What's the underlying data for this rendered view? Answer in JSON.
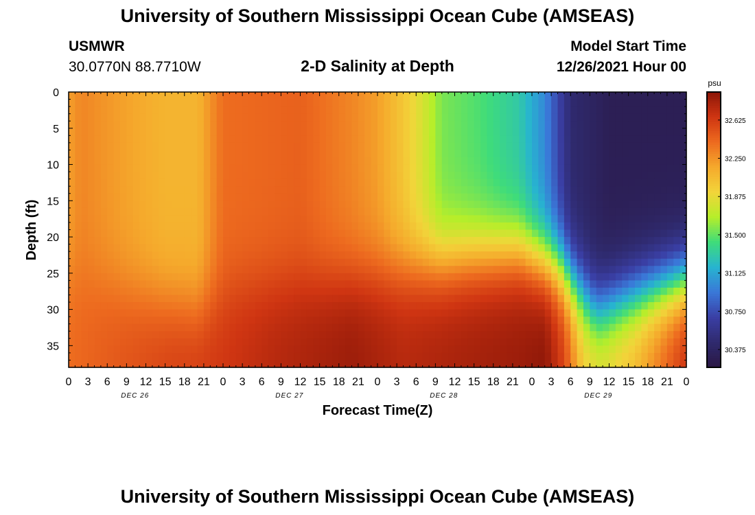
{
  "header": {
    "title": "University of Southern Mississippi Ocean Cube (AMSEAS)",
    "station_id": "USMWR",
    "station_coords": "30.0770N  88.7710W",
    "plot_title": "2-D Salinity at Depth",
    "model_start_label": "Model Start Time",
    "model_start_time": "12/26/2021 Hour 00"
  },
  "footer": {
    "title": "University of Southern Mississippi Ocean Cube (AMSEAS)"
  },
  "colors": {
    "colormap": [
      "#2a1744",
      "#2f2a6e",
      "#3a3fa5",
      "#3a78d8",
      "#27b4d0",
      "#3fdc7a",
      "#b6ee2a",
      "#f2d53a",
      "#f5a92c",
      "#ed6a1f",
      "#cf3512",
      "#8c1608"
    ]
  },
  "chart_data": {
    "type": "heatmap",
    "title": "2-D Salinity at Depth",
    "xlabel": "Forecast Time(Z)",
    "ylabel": "Depth (ft)",
    "x_tick_labels": [
      "0",
      "3",
      "6",
      "9",
      "12",
      "15",
      "18",
      "21",
      "0",
      "3",
      "6",
      "9",
      "12",
      "15",
      "18",
      "21",
      "0",
      "3",
      "6",
      "9",
      "12",
      "15",
      "18",
      "21",
      "0",
      "3",
      "6",
      "9",
      "12",
      "15",
      "18",
      "21",
      "0"
    ],
    "x_hours_range": [
      0,
      96
    ],
    "day_labels": [
      {
        "label": "DEC 26",
        "hour": 10
      },
      {
        "label": "DEC 27",
        "hour": 34
      },
      {
        "label": "DEC 28",
        "hour": 58
      },
      {
        "label": "DEC 29",
        "hour": 82
      }
    ],
    "y_ticks": [
      0,
      5,
      10,
      15,
      20,
      25,
      30,
      35
    ],
    "ylim": [
      0,
      38
    ],
    "colorbar": {
      "unit": "psu",
      "min": 30.2,
      "max": 32.9,
      "tick_labels": [
        "32.625",
        "32.250",
        "31.875",
        "31.500",
        "31.125",
        "30.750",
        "30.375"
      ],
      "tick_values": [
        32.625,
        32.25,
        31.875,
        31.5,
        31.125,
        30.75,
        30.375
      ]
    },
    "surface_profile": [
      {
        "hour": 0,
        "psu": 32.2
      },
      {
        "hour": 2,
        "psu": 32.3
      },
      {
        "hour": 8,
        "psu": 32.2
      },
      {
        "hour": 15,
        "psu": 32.1
      },
      {
        "hour": 20,
        "psu": 32.1
      },
      {
        "hour": 24,
        "psu": 32.4
      },
      {
        "hour": 36,
        "psu": 32.45
      },
      {
        "hour": 44,
        "psu": 32.3
      },
      {
        "hour": 48,
        "psu": 32.2
      },
      {
        "hour": 52,
        "psu": 32.0
      },
      {
        "hour": 55,
        "psu": 31.8
      },
      {
        "hour": 58,
        "psu": 31.55
      },
      {
        "hour": 64,
        "psu": 31.45
      },
      {
        "hour": 70,
        "psu": 31.3
      },
      {
        "hour": 74,
        "psu": 31.0
      },
      {
        "hour": 78,
        "psu": 30.45
      },
      {
        "hour": 84,
        "psu": 30.3
      },
      {
        "hour": 96,
        "psu": 30.3
      }
    ],
    "bottom_profile": [
      {
        "hour": 0,
        "psu": 32.4
      },
      {
        "hour": 8,
        "psu": 32.5
      },
      {
        "hour": 16,
        "psu": 32.6
      },
      {
        "hour": 24,
        "psu": 32.65
      },
      {
        "hour": 32,
        "psu": 32.75
      },
      {
        "hour": 44,
        "psu": 32.85
      },
      {
        "hour": 52,
        "psu": 32.75
      },
      {
        "hour": 60,
        "psu": 32.8
      },
      {
        "hour": 70,
        "psu": 32.85
      },
      {
        "hour": 74,
        "psu": 32.9
      },
      {
        "hour": 77,
        "psu": 32.6
      },
      {
        "hour": 80,
        "psu": 32.0
      },
      {
        "hour": 83,
        "psu": 31.9
      },
      {
        "hour": 88,
        "psu": 32.1
      },
      {
        "hour": 96,
        "psu": 32.7
      }
    ],
    "halocline_depth_ft": [
      {
        "hour": 0,
        "depth": 25
      },
      {
        "hour": 10,
        "depth": 28
      },
      {
        "hour": 20,
        "depth": 30
      },
      {
        "hour": 26,
        "depth": 27
      },
      {
        "hour": 40,
        "depth": 26
      },
      {
        "hour": 50,
        "depth": 25
      },
      {
        "hour": 56,
        "depth": 24
      },
      {
        "hour": 62,
        "depth": 23
      },
      {
        "hour": 70,
        "depth": 22
      },
      {
        "hour": 76,
        "depth": 24
      },
      {
        "hour": 82,
        "depth": 30
      },
      {
        "hour": 88,
        "depth": 28
      },
      {
        "hour": 96,
        "depth": 26
      }
    ]
  }
}
